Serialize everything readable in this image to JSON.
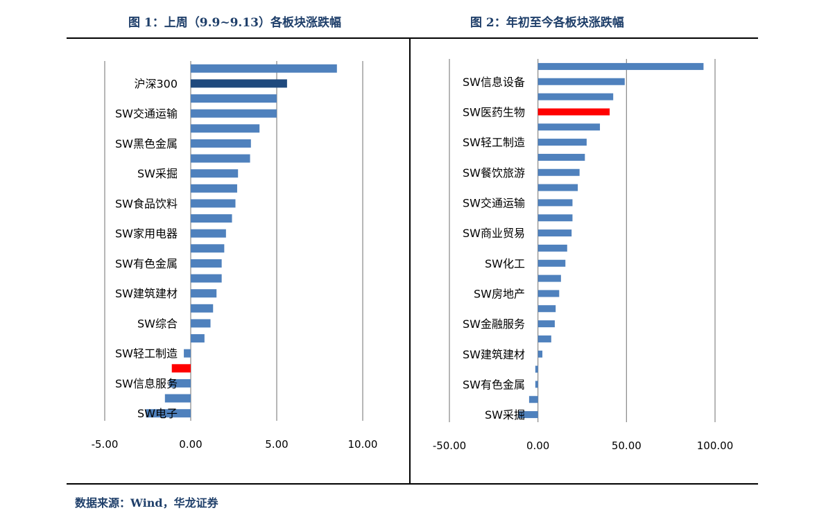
{
  "header": {
    "title_left": "图 1：上周（9.9~9.13）各板块涨跌幅",
    "title_right": "图 2：年初至今各板块涨跌幅"
  },
  "footer": {
    "source": "数据来源：Wind，华龙证券"
  },
  "colors": {
    "bar": "#4f81bd",
    "highlight_dark": "#1f497d",
    "highlight_red": "#ff0000",
    "grid": "#868686"
  },
  "chart_data": [
    {
      "type": "bar",
      "orientation": "horizontal",
      "title": "图 1：上周（9.9~9.13）各板块涨跌幅",
      "xlim": [
        -5,
        10
      ],
      "xticks": [
        "-5.00",
        "0.00",
        "5.00",
        "10.00"
      ],
      "grid": true,
      "categories": [
        "",
        "沪深300",
        "",
        "SW交通运输",
        "",
        "SW黑色金属",
        "",
        "SW采掘",
        "",
        "SW食品饮料",
        "",
        "SW家用电器",
        "",
        "SW有色金属",
        "",
        "SW建筑建材",
        "",
        "SW综合",
        "",
        "SW轻工制造",
        "",
        "SW信息服务",
        "",
        "SW电子"
      ],
      "values": [
        8.5,
        5.6,
        5.0,
        5.0,
        4.0,
        3.5,
        3.45,
        2.75,
        2.7,
        2.6,
        2.4,
        2.05,
        1.95,
        1.8,
        1.8,
        1.5,
        1.3,
        1.15,
        0.8,
        -0.4,
        -1.1,
        -1.25,
        -1.5,
        -2.6
      ],
      "highlight": {
        "1": "dark",
        "20": "red"
      }
    },
    {
      "type": "bar",
      "orientation": "horizontal",
      "title": "图 2：年初至今各板块涨跌幅",
      "xlim": [
        -50,
        100
      ],
      "xticks": [
        "-50.00",
        "0.00",
        "50.00",
        "100.00"
      ],
      "grid": true,
      "categories": [
        "",
        "SW信息设备",
        "",
        "SW医药生物",
        "",
        "SW轻工制造",
        "",
        "SW餐饮旅游",
        "",
        "SW交通运输",
        "",
        "SW商业贸易",
        "",
        "SW化工",
        "",
        "SW房地产",
        "",
        "SW金融服务",
        "",
        "SW建筑建材",
        "",
        "SW有色金属",
        "",
        "SW采掘"
      ],
      "values": [
        93.5,
        49.0,
        42.5,
        40.5,
        35.0,
        27.5,
        26.5,
        23.5,
        22.5,
        19.5,
        19.5,
        19.0,
        16.5,
        15.5,
        13.0,
        12.0,
        10.0,
        9.5,
        7.5,
        2.5,
        -1.5,
        -1.5,
        -5.0,
        -11.0
      ],
      "highlight": {
        "3": "red"
      }
    }
  ]
}
